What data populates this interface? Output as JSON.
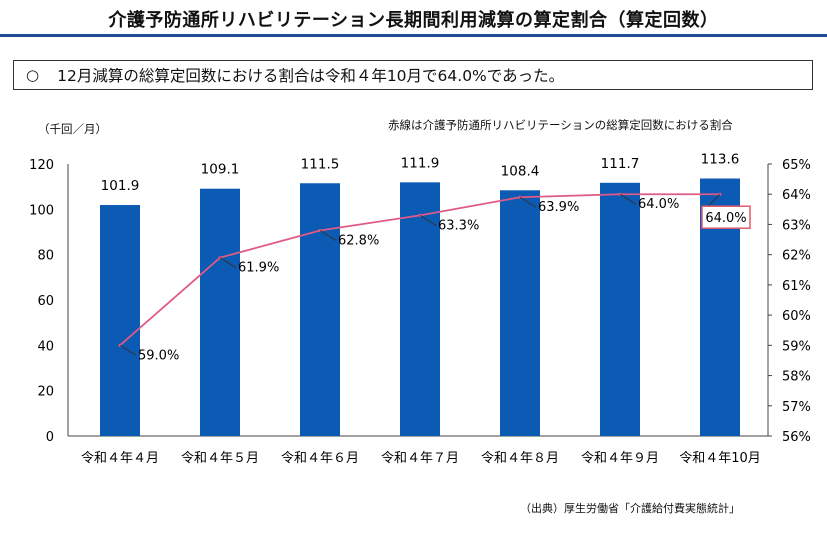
{
  "title": "介護予防通所リハビリテーション長期間利用減算の算定割合（算定回数）",
  "summary": {
    "bullet": "○",
    "text": "12月減算の総算定回数における割合は令和４年10月で64.0%であった。"
  },
  "unit_label": "（千回／月）",
  "line_note": "赤線は介護予防通所リハビリテーションの総算定回数における割合",
  "source": "（出典）厚生労働省「介護給付費実態統計」",
  "colors": {
    "bar": "#0b5ab4",
    "line": "#e05a86",
    "highlight_box": "#e05a6a",
    "title_rule": "#1f4e96"
  },
  "chart_data": {
    "type": "bar+line",
    "categories": [
      "令和４年４月",
      "令和４年５月",
      "令和４年６月",
      "令和４年７月",
      "令和４年８月",
      "令和４年９月",
      "令和４年10月"
    ],
    "series": [
      {
        "name": "算定回数（千回／月）",
        "type": "bar",
        "axis": "left",
        "values": [
          101.9,
          109.1,
          111.5,
          111.9,
          108.4,
          111.7,
          113.6
        ],
        "labels": [
          "101.9",
          "109.1",
          "111.5",
          "111.9",
          "108.4",
          "111.7",
          "113.6"
        ]
      },
      {
        "name": "総算定回数における割合",
        "type": "line",
        "axis": "right",
        "values": [
          59.0,
          61.9,
          62.8,
          63.3,
          63.9,
          64.0,
          64.0
        ],
        "labels": [
          "59.0%",
          "61.9%",
          "62.8%",
          "63.3%",
          "63.9%",
          "64.0%",
          "64.0%"
        ]
      }
    ],
    "y_left": {
      "min": 0,
      "max": 120,
      "ticks": [
        "0",
        "20",
        "40",
        "60",
        "80",
        "100",
        "120"
      ]
    },
    "y_right": {
      "min": 56,
      "max": 65,
      "ticks": [
        "56%",
        "57%",
        "58%",
        "59%",
        "60%",
        "61%",
        "62%",
        "63%",
        "64%",
        "65%"
      ]
    },
    "grid": false,
    "highlighted_point": 6
  }
}
